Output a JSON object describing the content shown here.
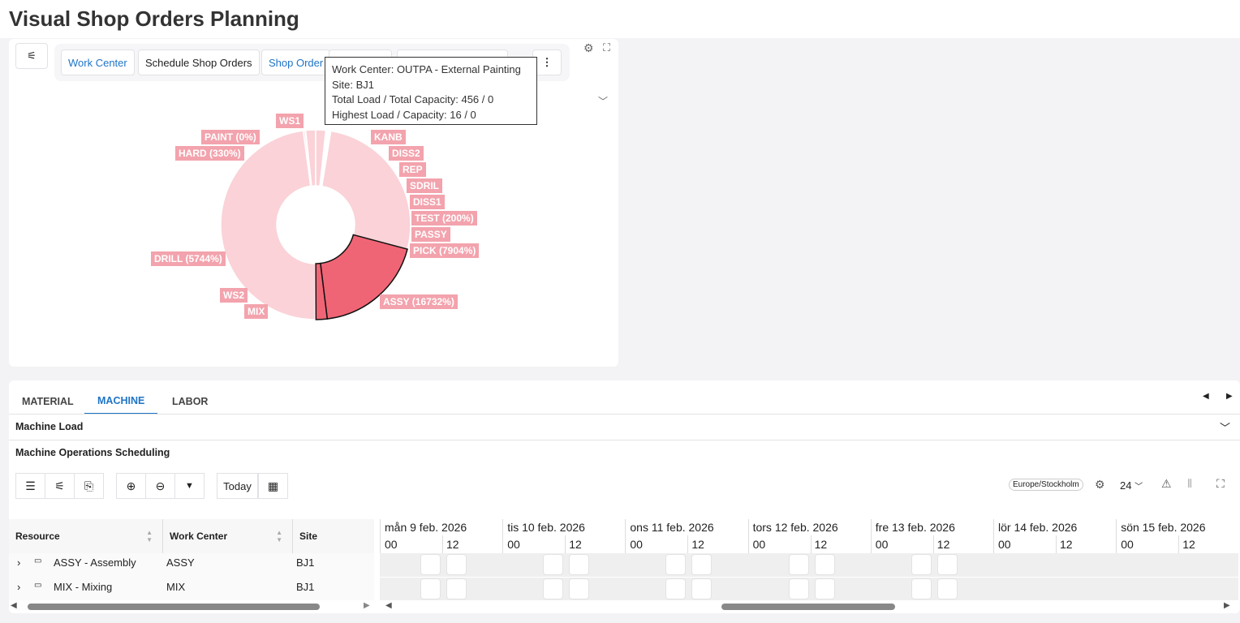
{
  "page_title": "Visual Shop Orders Planning",
  "toolbar": {
    "work_center": "Work Center",
    "schedule": "Schedule Shop Orders",
    "shop_order": "Shop Order"
  },
  "tooltip": {
    "line1": "Work Center: OUTPA - External Painting",
    "line2": "Site: BJ1",
    "line3": "Total Load / Total Capacity: 456 / 0",
    "line4": "Highest Load / Capacity: 16 / 0"
  },
  "chart_data": {
    "type": "pie",
    "donut": true,
    "categories": [
      "OUTPA",
      "KANB",
      "DISS2",
      "REP",
      "SDRIL",
      "DISS1",
      "TEST",
      "PASSY",
      "PICK",
      "ASSY",
      "MIX",
      "WS2",
      "DRILL",
      "HARD",
      "PAINT",
      "WS1"
    ],
    "labels": [
      null,
      "KANB",
      "DISS2",
      "REP",
      "SDRIL",
      "DISS1",
      "TEST (200%)",
      "PASSY",
      "PICK (7904%)",
      "ASSY (16732%)",
      "MIX",
      "WS2",
      "DRILL (5744%)",
      "HARD (330%)",
      "PAINT (0%)",
      "WS1"
    ],
    "values": [
      1.7,
      0.15,
      0.15,
      0.1,
      0.1,
      0.1,
      0.15,
      0.1,
      26.6,
      18.9,
      1.9,
      0.15,
      47.8,
      0.3,
      0.1,
      1.7
    ],
    "highlighted": [
      "ASSY",
      "MIX"
    ],
    "colors": {
      "slice": "#fad2d7",
      "highlight": "#f06575",
      "label_bg": "#f3a3ad"
    }
  },
  "tabs": [
    "MATERIAL",
    "MACHINE",
    "LABOR"
  ],
  "active_tab": "MACHINE",
  "sections": {
    "load": "Machine Load",
    "scheduling": "Machine Operations Scheduling"
  },
  "gantt": {
    "today": "Today",
    "timezone": "Europe/Stockholm",
    "hours": "24",
    "columns": [
      "Resource",
      "Work Center",
      "Site"
    ],
    "rows": [
      {
        "resource": "ASSY - Assembly",
        "work_center": "ASSY",
        "site": "BJ1"
      },
      {
        "resource": "MIX - Mixing",
        "work_center": "MIX",
        "site": "BJ1"
      }
    ],
    "days": [
      {
        "label": "mån 9 feb. 2026",
        "h0": "00",
        "h12": "12"
      },
      {
        "label": "tis 10 feb. 2026",
        "h0": "00",
        "h12": "12"
      },
      {
        "label": "ons 11 feb. 2026",
        "h0": "00",
        "h12": "12"
      },
      {
        "label": "tors 12 feb. 2026",
        "h0": "00",
        "h12": "12"
      },
      {
        "label": "fre 13 feb. 2026",
        "h0": "00",
        "h12": "12"
      },
      {
        "label": "lör 14 feb. 2026",
        "h0": "00",
        "h12": "12"
      },
      {
        "label": "sön 15 feb. 2026",
        "h0": "00",
        "h12": "12"
      }
    ]
  },
  "colors": {
    "accent": "#1f74c6",
    "background": "#f3f2f5"
  }
}
